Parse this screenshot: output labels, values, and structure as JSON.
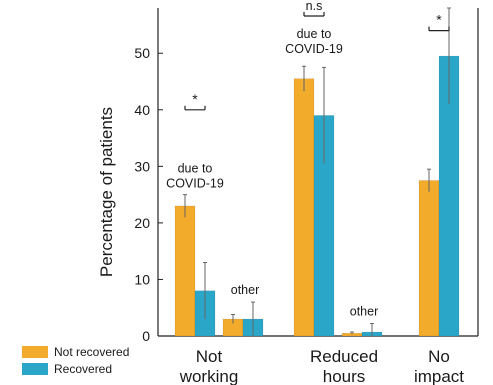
{
  "chart_data": {
    "type": "bar",
    "title": "",
    "xlabel": "",
    "ylabel": "Percentage of patients",
    "ylim": [
      0,
      58
    ],
    "yticks": [
      0,
      10,
      20,
      30,
      40,
      50
    ],
    "grid": false,
    "legend_position": "bottom-left",
    "groups": [
      {
        "label_lines": [
          "Not",
          "working"
        ],
        "subgroups": [
          {
            "label": "due to COVID-19",
            "values": [
              23.0,
              8.0
            ],
            "errors": [
              2.0,
              5.0
            ]
          },
          {
            "label": "other",
            "values": [
              3.0,
              3.0
            ],
            "errors": [
              0.8,
              3.0
            ]
          }
        ]
      },
      {
        "label_lines": [
          "Reduced",
          "hours"
        ],
        "subgroups": [
          {
            "label": "due to COVID-19",
            "values": [
              45.5,
              39.0
            ],
            "errors": [
              2.2,
              8.5
            ]
          },
          {
            "label": "other",
            "values": [
              0.5,
              0.7
            ],
            "errors": [
              0.2,
              1.5
            ]
          }
        ]
      },
      {
        "label_lines": [
          "No",
          "impact"
        ],
        "subgroups": [
          {
            "label": "",
            "values": [
              27.5,
              49.5
            ],
            "errors": [
              2.0,
              8.5
            ]
          }
        ]
      }
    ],
    "series": [
      {
        "name": "Not recovered",
        "color": "#f2ab2b"
      },
      {
        "name": "Recovered",
        "color": "#2aa6c9"
      }
    ],
    "significance": [
      {
        "label": "*",
        "group": 0,
        "subgroup": 0,
        "y": 40.0
      },
      {
        "label": "n.s",
        "group": 1,
        "subgroup": 0,
        "y": 58.5
      },
      {
        "label": "*",
        "group": 2,
        "subgroup": 0,
        "y": 54.0
      }
    ]
  }
}
